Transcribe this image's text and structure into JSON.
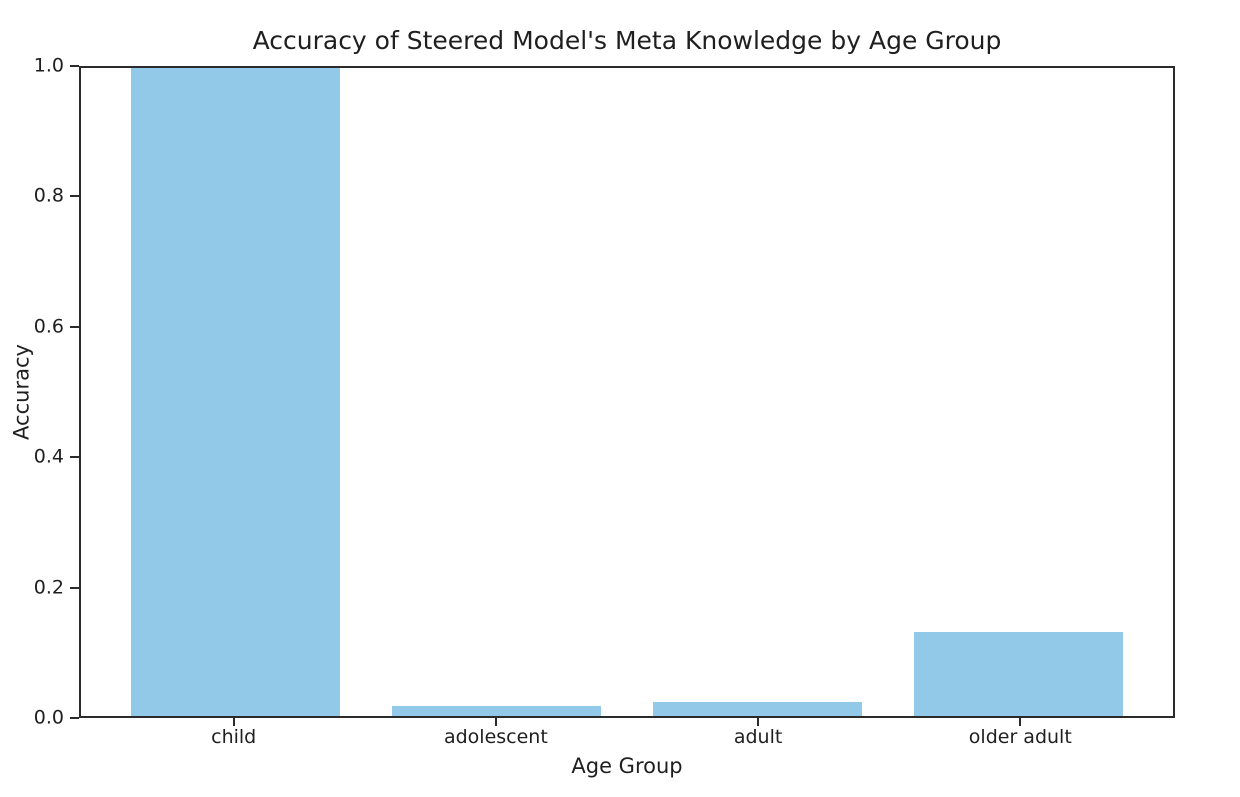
{
  "chart_data": {
    "type": "bar",
    "title": "Accuracy of Steered Model's Meta Knowledge by Age Group",
    "xlabel": "Age Group",
    "ylabel": "Accuracy",
    "categories": [
      "child",
      "adolescent",
      "adult",
      "older adult"
    ],
    "values": [
      1.0,
      0.015,
      0.022,
      0.129
    ],
    "bar_color": "#92c9e8",
    "bar_width": 0.8,
    "xlim": [
      -0.59,
      3.59
    ],
    "ylim": [
      0.0,
      1.0
    ],
    "yticks": [
      0.0,
      0.2,
      0.4,
      0.6,
      0.8,
      1.0
    ],
    "ytick_decimals": 1,
    "grid": false,
    "legend": "none",
    "axis_color": "#2b2b2b",
    "text_color": "#1f1f1f",
    "background": "#ffffff"
  }
}
